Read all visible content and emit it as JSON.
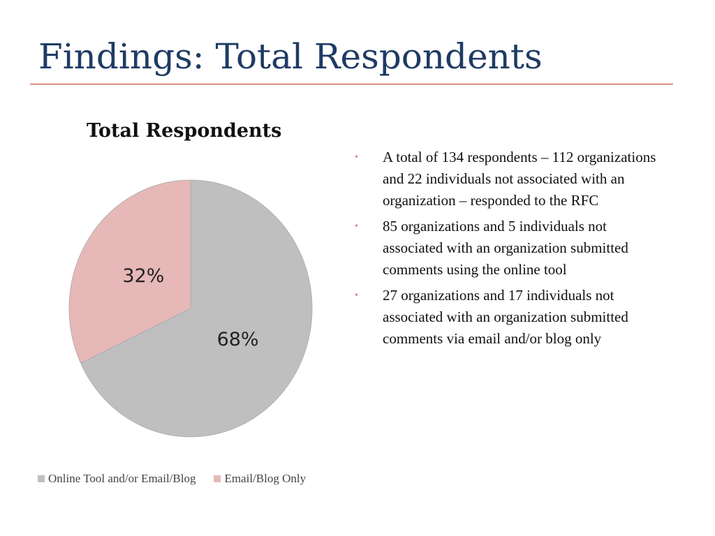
{
  "slide": {
    "title": "Findings: Total Respondents"
  },
  "chart_data": {
    "type": "pie",
    "title": "Total Respondents",
    "categories": [
      "Online Tool and/or Email/Blog",
      "Email/Blog Only"
    ],
    "values": [
      68,
      32
    ],
    "data_labels": [
      "68%",
      "32%"
    ],
    "colors": [
      "#bfbfbf",
      "#e6b8b7"
    ],
    "legend_position": "bottom-left"
  },
  "bullets": [
    "A total of 134 respondents – 112 organizations and 22 individuals not associated with an organization – responded to the RFC",
    "85 organizations and 5 individuals not associated with an organization submitted comments using the online tool",
    "27 organizations and 17 individuals not associated with an organization submitted comments via email and/or blog only"
  ]
}
